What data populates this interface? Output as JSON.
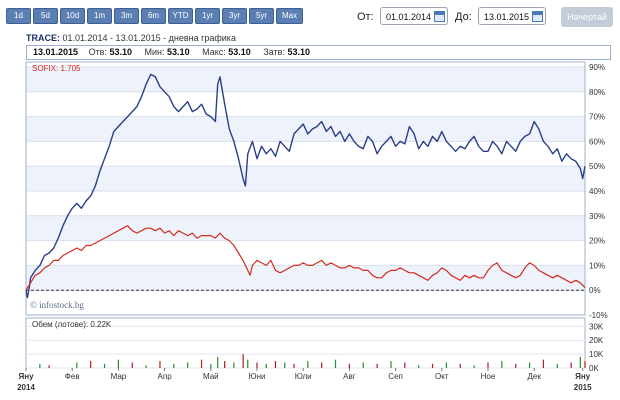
{
  "range_buttons": [
    "1d",
    "5d",
    "10d",
    "1m",
    "3m",
    "6m",
    "YTD",
    "1yr",
    "3yr",
    "5yr",
    "Max"
  ],
  "date_from_label": "От:",
  "date_from": "01.01.2014",
  "date_to_label": "До:",
  "date_to": "13.01.2015",
  "show_button": "Начертай",
  "title": {
    "ticker": "TRACE:",
    "range": "01.01.2014 - 13.01.2015 - дневна графика"
  },
  "info": {
    "date": "13.01.2015",
    "open_label": "Отв:",
    "open": "53.10",
    "min_label": "Мин:",
    "min": "53.10",
    "max_label": "Макс:",
    "max": "53.10",
    "close_label": "Затв:",
    "close": "53.10"
  },
  "watermark": "© infostock.bg",
  "chart_data": {
    "type": "line",
    "x_labels": [
      "Яну",
      "Фев",
      "Мар",
      "Апр",
      "Май",
      "Юни",
      "Юли",
      "Авг",
      "Сеп",
      "Окт",
      "Ное",
      "Дек",
      "Яну"
    ],
    "x_year_labels": [
      "2014",
      "2015"
    ],
    "y_ticks": [
      "90%",
      "80%",
      "70%",
      "60%",
      "50%",
      "40%",
      "30%",
      "20%",
      "10%",
      "0%",
      "-10%"
    ],
    "ylim": [
      -10,
      92
    ],
    "grid": true,
    "series": [
      {
        "name": "TRACE",
        "color": "#2a3f8a",
        "values": [
          [
            0,
            0
          ],
          [
            0.03,
            -3
          ],
          [
            0.07,
            1
          ],
          [
            0.1,
            5
          ],
          [
            0.2,
            8
          ],
          [
            0.3,
            10
          ],
          [
            0.4,
            14
          ],
          [
            0.5,
            15
          ],
          [
            0.6,
            17
          ],
          [
            0.7,
            21
          ],
          [
            0.8,
            26
          ],
          [
            0.9,
            30
          ],
          [
            1.0,
            33
          ],
          [
            1.1,
            35
          ],
          [
            1.2,
            33
          ],
          [
            1.3,
            36
          ],
          [
            1.4,
            38
          ],
          [
            1.5,
            42
          ],
          [
            1.6,
            48
          ],
          [
            1.7,
            53
          ],
          [
            1.8,
            58
          ],
          [
            1.9,
            64
          ],
          [
            2.0,
            66
          ],
          [
            2.1,
            68
          ],
          [
            2.2,
            70
          ],
          [
            2.3,
            72
          ],
          [
            2.4,
            74
          ],
          [
            2.5,
            78
          ],
          [
            2.6,
            83
          ],
          [
            2.7,
            87
          ],
          [
            2.8,
            86
          ],
          [
            2.9,
            82
          ],
          [
            3.0,
            80
          ],
          [
            3.1,
            78
          ],
          [
            3.2,
            74
          ],
          [
            3.3,
            72
          ],
          [
            3.4,
            74
          ],
          [
            3.5,
            76
          ],
          [
            3.6,
            72
          ],
          [
            3.7,
            73
          ],
          [
            3.8,
            75
          ],
          [
            3.9,
            71
          ],
          [
            4.0,
            70
          ],
          [
            4.1,
            68
          ],
          [
            4.15,
            83
          ],
          [
            4.2,
            86
          ],
          [
            4.3,
            75
          ],
          [
            4.4,
            65
          ],
          [
            4.5,
            60
          ],
          [
            4.6,
            53
          ],
          [
            4.7,
            45
          ],
          [
            4.75,
            42
          ],
          [
            4.8,
            55
          ],
          [
            4.9,
            60
          ],
          [
            5.0,
            53
          ],
          [
            5.1,
            58
          ],
          [
            5.2,
            55
          ],
          [
            5.3,
            57
          ],
          [
            5.4,
            54
          ],
          [
            5.5,
            60
          ],
          [
            5.6,
            58
          ],
          [
            5.7,
            56
          ],
          [
            5.8,
            63
          ],
          [
            5.9,
            65
          ],
          [
            6.0,
            67
          ],
          [
            6.1,
            63
          ],
          [
            6.2,
            65
          ],
          [
            6.3,
            66
          ],
          [
            6.4,
            68
          ],
          [
            6.5,
            64
          ],
          [
            6.6,
            66
          ],
          [
            6.7,
            62
          ],
          [
            6.8,
            64
          ],
          [
            6.9,
            60
          ],
          [
            7.0,
            63
          ],
          [
            7.1,
            60
          ],
          [
            7.2,
            58
          ],
          [
            7.3,
            57
          ],
          [
            7.4,
            62
          ],
          [
            7.5,
            60
          ],
          [
            7.6,
            55
          ],
          [
            7.7,
            58
          ],
          [
            7.8,
            60
          ],
          [
            7.9,
            62
          ],
          [
            8.0,
            58
          ],
          [
            8.1,
            60
          ],
          [
            8.2,
            59
          ],
          [
            8.3,
            66
          ],
          [
            8.4,
            63
          ],
          [
            8.5,
            57
          ],
          [
            8.6,
            60
          ],
          [
            8.7,
            58
          ],
          [
            8.8,
            62
          ],
          [
            8.9,
            60
          ],
          [
            9.0,
            64
          ],
          [
            9.1,
            60
          ],
          [
            9.2,
            58
          ],
          [
            9.3,
            56
          ],
          [
            9.4,
            58
          ],
          [
            9.5,
            57
          ],
          [
            9.6,
            60
          ],
          [
            9.7,
            62
          ],
          [
            9.8,
            58
          ],
          [
            9.9,
            56
          ],
          [
            10.0,
            56
          ],
          [
            10.1,
            60
          ],
          [
            10.2,
            58
          ],
          [
            10.3,
            55
          ],
          [
            10.4,
            60
          ],
          [
            10.5,
            58
          ],
          [
            10.6,
            56
          ],
          [
            10.7,
            60
          ],
          [
            10.8,
            62
          ],
          [
            10.9,
            63
          ],
          [
            11.0,
            68
          ],
          [
            11.1,
            65
          ],
          [
            11.2,
            60
          ],
          [
            11.3,
            58
          ],
          [
            11.4,
            55
          ],
          [
            11.5,
            57
          ],
          [
            11.6,
            52
          ],
          [
            11.7,
            55
          ],
          [
            11.8,
            53
          ],
          [
            11.9,
            52
          ],
          [
            12.0,
            49
          ],
          [
            12.05,
            45
          ],
          [
            12.1,
            50
          ]
        ]
      },
      {
        "name": "SOFIX",
        "label": "SOFIX: 1.705",
        "color": "#d32b1e",
        "values": [
          [
            0,
            0
          ],
          [
            0.1,
            3
          ],
          [
            0.2,
            6
          ],
          [
            0.3,
            7
          ],
          [
            0.4,
            9
          ],
          [
            0.5,
            10
          ],
          [
            0.6,
            12
          ],
          [
            0.7,
            12
          ],
          [
            0.8,
            14
          ],
          [
            0.9,
            15
          ],
          [
            1.0,
            16
          ],
          [
            1.1,
            17
          ],
          [
            1.2,
            16
          ],
          [
            1.3,
            18
          ],
          [
            1.4,
            18
          ],
          [
            1.5,
            19
          ],
          [
            1.6,
            20
          ],
          [
            1.7,
            21
          ],
          [
            1.8,
            22
          ],
          [
            1.9,
            23
          ],
          [
            2.0,
            24
          ],
          [
            2.1,
            25
          ],
          [
            2.2,
            26
          ],
          [
            2.3,
            24
          ],
          [
            2.4,
            23
          ],
          [
            2.5,
            24
          ],
          [
            2.6,
            25
          ],
          [
            2.7,
            25
          ],
          [
            2.8,
            24
          ],
          [
            2.9,
            25
          ],
          [
            3.0,
            23
          ],
          [
            3.1,
            24
          ],
          [
            3.2,
            22
          ],
          [
            3.3,
            24
          ],
          [
            3.4,
            23
          ],
          [
            3.5,
            22
          ],
          [
            3.6,
            23
          ],
          [
            3.7,
            21
          ],
          [
            3.8,
            22
          ],
          [
            3.9,
            22
          ],
          [
            4.0,
            22
          ],
          [
            4.1,
            21
          ],
          [
            4.2,
            23
          ],
          [
            4.3,
            21
          ],
          [
            4.4,
            20
          ],
          [
            4.5,
            18
          ],
          [
            4.6,
            15
          ],
          [
            4.7,
            12
          ],
          [
            4.8,
            8
          ],
          [
            4.85,
            6
          ],
          [
            4.9,
            10
          ],
          [
            5.0,
            12
          ],
          [
            5.1,
            11
          ],
          [
            5.2,
            10
          ],
          [
            5.3,
            12
          ],
          [
            5.4,
            8
          ],
          [
            5.5,
            7
          ],
          [
            5.6,
            8
          ],
          [
            5.7,
            9
          ],
          [
            5.8,
            10
          ],
          [
            5.9,
            10
          ],
          [
            6.0,
            11
          ],
          [
            6.1,
            10
          ],
          [
            6.2,
            10
          ],
          [
            6.3,
            11
          ],
          [
            6.4,
            12
          ],
          [
            6.5,
            10
          ],
          [
            6.6,
            11
          ],
          [
            6.7,
            10
          ],
          [
            6.8,
            9
          ],
          [
            6.9,
            9
          ],
          [
            7.0,
            10
          ],
          [
            7.1,
            9
          ],
          [
            7.2,
            9
          ],
          [
            7.3,
            8
          ],
          [
            7.4,
            8
          ],
          [
            7.5,
            6
          ],
          [
            7.6,
            5
          ],
          [
            7.7,
            5
          ],
          [
            7.8,
            7
          ],
          [
            7.9,
            8
          ],
          [
            8.0,
            8
          ],
          [
            8.1,
            9
          ],
          [
            8.2,
            8
          ],
          [
            8.3,
            7
          ],
          [
            8.4,
            7
          ],
          [
            8.5,
            6
          ],
          [
            8.6,
            5
          ],
          [
            8.7,
            4
          ],
          [
            8.8,
            6
          ],
          [
            8.9,
            7
          ],
          [
            9.0,
            9
          ],
          [
            9.1,
            8
          ],
          [
            9.2,
            6
          ],
          [
            9.3,
            5
          ],
          [
            9.4,
            4
          ],
          [
            9.5,
            6
          ],
          [
            9.6,
            5
          ],
          [
            9.7,
            6
          ],
          [
            9.8,
            5
          ],
          [
            9.9,
            5
          ],
          [
            10.0,
            8
          ],
          [
            10.1,
            10
          ],
          [
            10.2,
            11
          ],
          [
            10.3,
            8
          ],
          [
            10.4,
            7
          ],
          [
            10.5,
            6
          ],
          [
            10.6,
            5
          ],
          [
            10.7,
            6
          ],
          [
            10.8,
            9
          ],
          [
            10.9,
            11
          ],
          [
            11.0,
            10
          ],
          [
            11.1,
            8
          ],
          [
            11.2,
            7
          ],
          [
            11.3,
            6
          ],
          [
            11.4,
            5
          ],
          [
            11.5,
            6
          ],
          [
            11.6,
            5
          ],
          [
            11.7,
            4
          ],
          [
            11.8,
            3
          ],
          [
            11.9,
            4
          ],
          [
            12.0,
            3
          ],
          [
            12.05,
            2
          ],
          [
            12.1,
            1
          ]
        ]
      }
    ],
    "volume": {
      "label": "Обем (лотове): 0.22K",
      "y_ticks": [
        "30K",
        "20K",
        "10K",
        "0K"
      ],
      "ylim": [
        0,
        36
      ],
      "up_color": "#2e8b2e",
      "down_color": "#b01e1e",
      "bars": [
        [
          0.3,
          3,
          1
        ],
        [
          0.5,
          2,
          0
        ],
        [
          1.1,
          4,
          1
        ],
        [
          1.4,
          5,
          0
        ],
        [
          1.7,
          3,
          1
        ],
        [
          2.0,
          6,
          1
        ],
        [
          2.3,
          4,
          0
        ],
        [
          2.6,
          2,
          1
        ],
        [
          2.9,
          5,
          0
        ],
        [
          3.2,
          3,
          1
        ],
        [
          3.5,
          4,
          1
        ],
        [
          3.8,
          6,
          0
        ],
        [
          4.0,
          3,
          1
        ],
        [
          4.15,
          8,
          1
        ],
        [
          4.3,
          5,
          0
        ],
        [
          4.5,
          4,
          1
        ],
        [
          4.7,
          10,
          0
        ],
        [
          4.8,
          6,
          1
        ],
        [
          5.0,
          4,
          0
        ],
        [
          5.2,
          3,
          1
        ],
        [
          5.4,
          5,
          0
        ],
        [
          5.6,
          4,
          1
        ],
        [
          5.8,
          3,
          0
        ],
        [
          6.1,
          5,
          1
        ],
        [
          6.4,
          4,
          0
        ],
        [
          6.7,
          6,
          1
        ],
        [
          7.0,
          3,
          0
        ],
        [
          7.3,
          4,
          1
        ],
        [
          7.6,
          3,
          0
        ],
        [
          7.9,
          5,
          1
        ],
        [
          8.2,
          4,
          0
        ],
        [
          8.5,
          2,
          1
        ],
        [
          8.8,
          3,
          0
        ],
        [
          9.1,
          4,
          1
        ],
        [
          9.4,
          3,
          0
        ],
        [
          9.7,
          2,
          1
        ],
        [
          10.0,
          4,
          0
        ],
        [
          10.3,
          5,
          1
        ],
        [
          10.6,
          3,
          0
        ],
        [
          10.9,
          4,
          1
        ],
        [
          11.2,
          6,
          0
        ],
        [
          11.5,
          3,
          1
        ],
        [
          11.8,
          4,
          0
        ],
        [
          12.0,
          8,
          1
        ],
        [
          12.1,
          5,
          0
        ]
      ]
    }
  }
}
